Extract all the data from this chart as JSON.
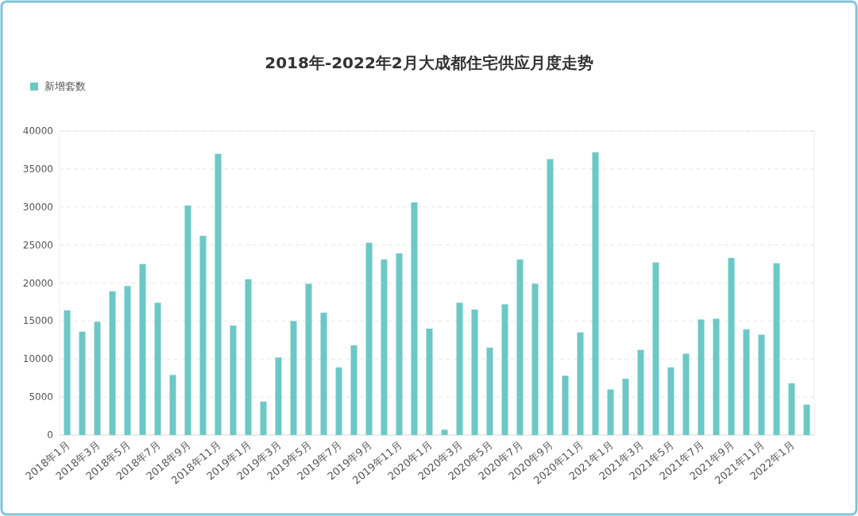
{
  "chart_data": {
    "type": "bar",
    "title": "2018年-2022年2月大成都住宅供应月度走势",
    "categories": [
      "2018年1月",
      null,
      "2018年3月",
      null,
      "2018年5月",
      null,
      "2018年7月",
      null,
      "2018年9月",
      null,
      "2018年11月",
      null,
      "2019年1月",
      null,
      "2019年3月",
      null,
      "2019年5月",
      null,
      "2019年7月",
      null,
      "2019年9月",
      null,
      "2019年11月",
      null,
      "2020年1月",
      null,
      "2020年3月",
      null,
      "2020年5月",
      null,
      "2020年7月",
      null,
      "2020年9月",
      null,
      "2020年11月",
      null,
      "2021年1月",
      null,
      "2021年3月",
      null,
      "2021年5月",
      null,
      "2021年7月",
      null,
      "2021年9月",
      null,
      "2021年11月",
      null,
      "2022年1月",
      null
    ],
    "series": [
      {
        "name": "新增套数",
        "color": "#6cc8c6",
        "values": [
          16400,
          13600,
          14900,
          18900,
          19600,
          22500,
          17400,
          7900,
          30200,
          26200,
          37000,
          14400,
          20500,
          4400,
          10200,
          15000,
          19900,
          16100,
          8900,
          11800,
          25300,
          23100,
          23900,
          30600,
          14000,
          700,
          17400,
          16500,
          11500,
          17200,
          23100,
          19900,
          36300,
          7800,
          13500,
          37200,
          6000,
          7400,
          11200,
          22700,
          8900,
          10700,
          15200,
          15300,
          23300,
          13900,
          13200,
          22600,
          6800,
          4000
        ]
      }
    ],
    "ylim": [
      0,
      40000
    ],
    "yticks": [
      0,
      5000,
      10000,
      15000,
      20000,
      25000,
      30000,
      35000,
      40000
    ],
    "grid": "y",
    "legend": "top left"
  }
}
